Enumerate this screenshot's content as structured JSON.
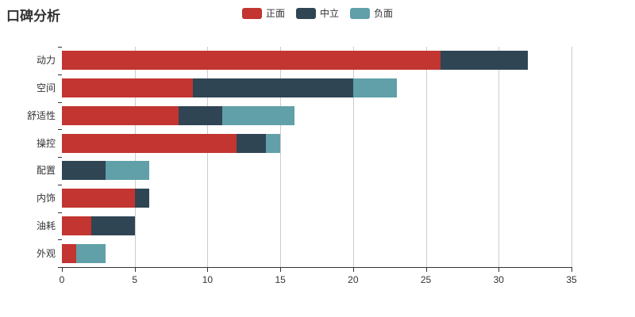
{
  "page": {
    "title": "口碑分析"
  },
  "chart_data": {
    "type": "bar",
    "variant": "horizontal-stacked",
    "title": "口碑分析",
    "categories": [
      "动力",
      "空间",
      "舒适性",
      "操控",
      "配置",
      "内饰",
      "油耗",
      "外观"
    ],
    "series": [
      {
        "name": "正面",
        "color": "#c23531",
        "values": [
          26,
          9,
          8,
          12,
          0,
          5,
          2,
          1
        ]
      },
      {
        "name": "中立",
        "color": "#2f4554",
        "values": [
          6,
          11,
          3,
          2,
          3,
          1,
          3,
          0
        ]
      },
      {
        "name": "负面",
        "color": "#61a0a8",
        "values": [
          0,
          3,
          5,
          1,
          3,
          0,
          0,
          2
        ]
      }
    ],
    "totals": [
      32,
      23,
      16,
      15,
      6,
      6,
      5,
      3
    ],
    "xlim": [
      0,
      35
    ],
    "xticks": [
      0,
      5,
      10,
      15,
      20,
      25,
      30,
      35
    ],
    "legend": {
      "position": "top-center",
      "labels": [
        "正面",
        "中立",
        "负面"
      ]
    },
    "grid": true,
    "axis_color": "#333333",
    "gridline_color": "#cccccc",
    "background_color": "#ffffff"
  }
}
